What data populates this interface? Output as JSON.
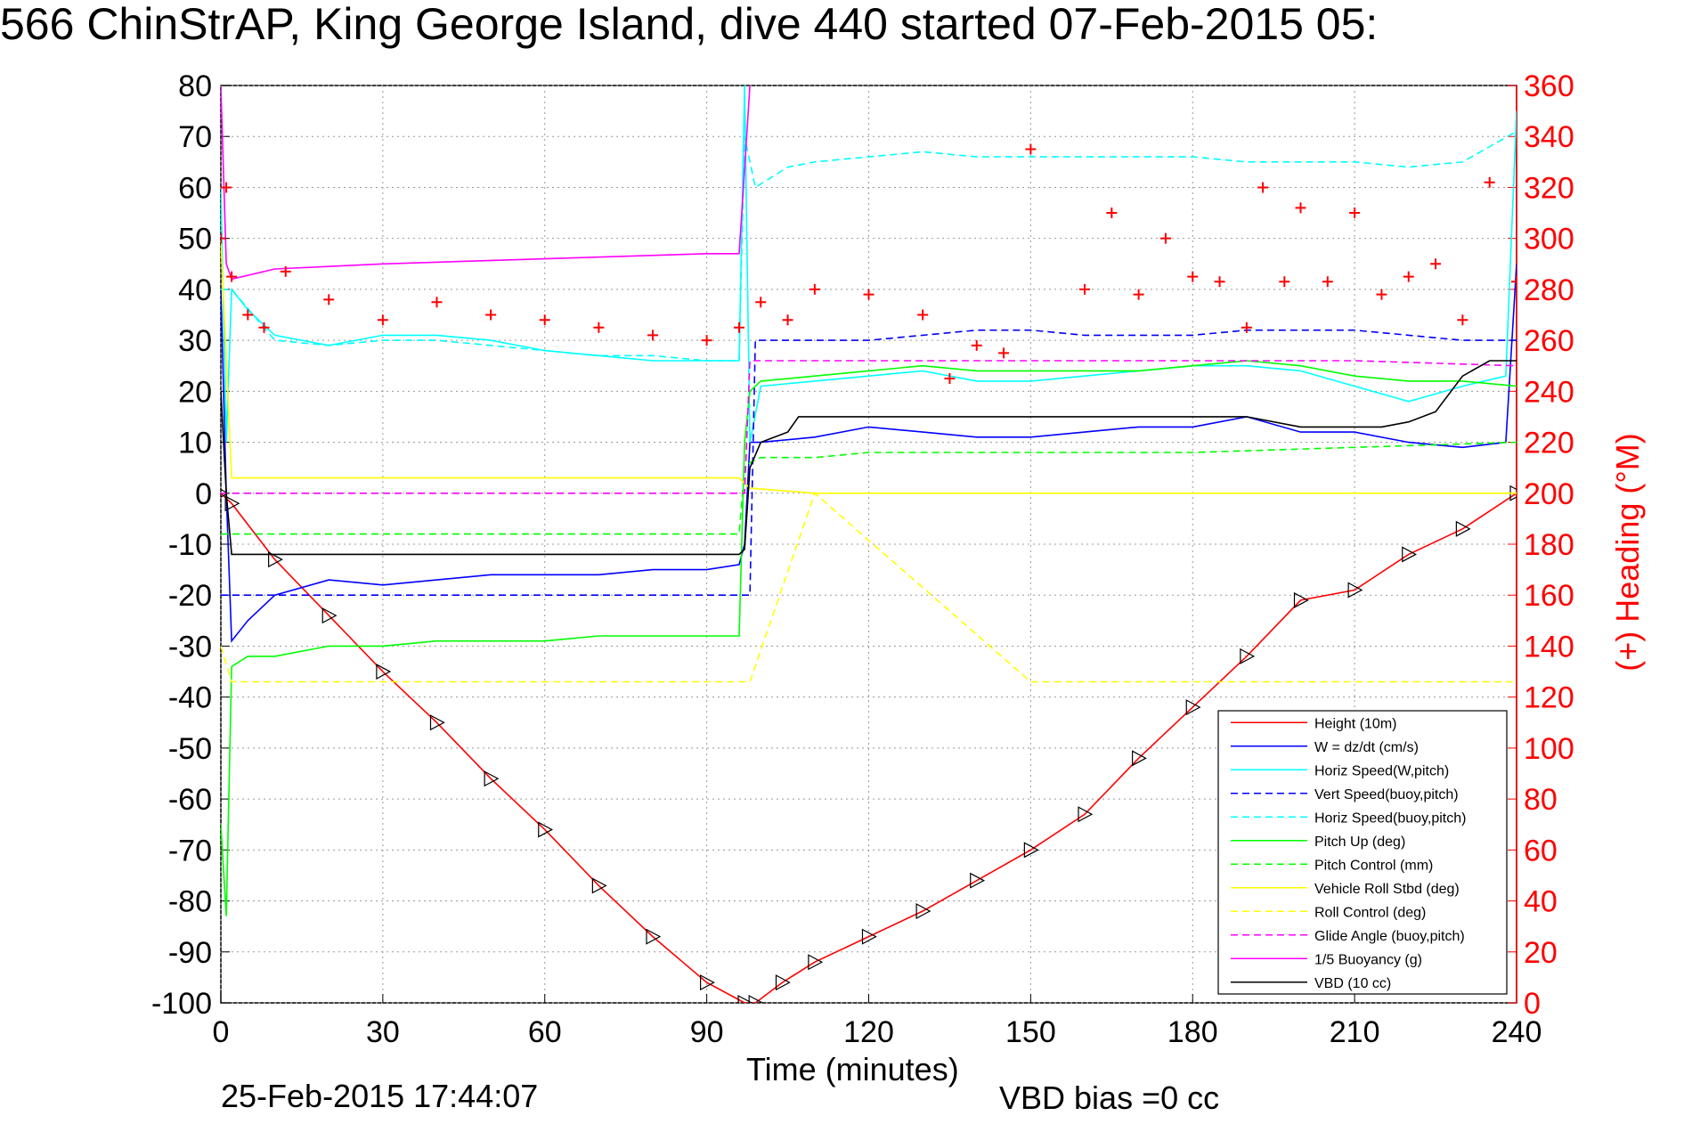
{
  "chart_data": {
    "type": "line",
    "title": "566 ChinStrAP, King George Island, dive 440 started 07-Feb-2015 05:",
    "xlabel": "Time (minutes)",
    "ylabel_right": "(+) Heading (°M)",
    "xlim": [
      0,
      240
    ],
    "ylim": [
      -100,
      80
    ],
    "ylim_right": [
      0,
      360
    ],
    "x_ticks": [
      0,
      30,
      60,
      90,
      120,
      150,
      180,
      210,
      240
    ],
    "y_ticks": [
      80,
      70,
      60,
      50,
      40,
      30,
      20,
      10,
      0,
      -10,
      -20,
      -30,
      -40,
      -50,
      -60,
      -70,
      -80,
      -90,
      -100
    ],
    "y_ticks_right": [
      360,
      340,
      320,
      300,
      280,
      260,
      240,
      220,
      200,
      180,
      160,
      140,
      120,
      100,
      80,
      60,
      40,
      20,
      0
    ],
    "grid": true,
    "legend_position": "bottom-right",
    "timestamp": "25-Feb-2015 17:44:07",
    "vbd_bias": "VBD bias =0 cc",
    "series": [
      {
        "name": "Height (10m)",
        "color": "#ff0000",
        "style": "solid",
        "marker": "triangle",
        "x": [
          0,
          2,
          10,
          20,
          30,
          40,
          50,
          60,
          70,
          80,
          90,
          97,
          99,
          104,
          110,
          120,
          130,
          140,
          150,
          160,
          170,
          180,
          190,
          200,
          210,
          220,
          230,
          240
        ],
        "y": [
          0,
          -2,
          -13,
          -24,
          -35,
          -45,
          -56,
          -66,
          -77,
          -87,
          -96,
          -100,
          -100,
          -96,
          -92,
          -87,
          -82,
          -76,
          -70,
          -63,
          -52,
          -42,
          -32,
          -21,
          -19,
          -12,
          -7,
          0
        ]
      },
      {
        "name": "W = dz/dt (cm/s)",
        "color": "#0000ff",
        "style": "solid",
        "x": [
          0,
          1,
          2,
          5,
          10,
          20,
          30,
          40,
          50,
          60,
          70,
          80,
          90,
          96,
          97,
          98,
          100,
          110,
          120,
          130,
          140,
          150,
          160,
          170,
          180,
          190,
          200,
          210,
          220,
          230,
          238,
          240
        ],
        "y": [
          40,
          0,
          -29,
          -25,
          -20,
          -17,
          -18,
          -17,
          -16,
          -16,
          -16,
          -15,
          -15,
          -14,
          -10,
          10,
          10,
          11,
          13,
          12,
          11,
          11,
          12,
          13,
          13,
          15,
          12,
          12,
          10,
          9,
          10,
          45
        ]
      },
      {
        "name": "Horiz Speed(W,pitch)",
        "color": "#00ffff",
        "style": "solid",
        "x": [
          0,
          1,
          2,
          5,
          10,
          20,
          30,
          40,
          50,
          60,
          70,
          80,
          90,
          96,
          97,
          98,
          100,
          110,
          120,
          130,
          140,
          150,
          160,
          170,
          180,
          190,
          200,
          210,
          220,
          230,
          238,
          240
        ],
        "y": [
          60,
          10,
          40,
          36,
          31,
          29,
          31,
          31,
          30,
          28,
          27,
          26,
          26,
          26,
          80,
          10,
          21,
          22,
          23,
          24,
          22,
          22,
          23,
          24,
          25,
          25,
          24,
          21,
          18,
          21,
          23,
          75
        ]
      },
      {
        "name": "Vert Speed(buoy,pitch)",
        "color": "#0000ff",
        "style": "dashed",
        "x": [
          0,
          2,
          98,
          99,
          110,
          120,
          130,
          140,
          150,
          160,
          170,
          180,
          190,
          200,
          210,
          220,
          230,
          240
        ],
        "y": [
          -20,
          -20,
          -20,
          30,
          30,
          30,
          31,
          32,
          32,
          31,
          31,
          31,
          32,
          32,
          32,
          31,
          30,
          30
        ]
      },
      {
        "name": "Horiz Speed(buoy,pitch)",
        "color": "#00ffff",
        "style": "dashed",
        "x": [
          0,
          2,
          10,
          20,
          30,
          40,
          50,
          60,
          70,
          80,
          90,
          96,
          97,
          99,
          105,
          110,
          120,
          130,
          140,
          150,
          160,
          170,
          180,
          190,
          200,
          210,
          220,
          230,
          240
        ],
        "y": [
          40,
          40,
          30,
          29,
          30,
          30,
          29,
          28,
          27,
          27,
          26,
          26,
          70,
          60,
          64,
          65,
          66,
          67,
          66,
          66,
          66,
          66,
          66,
          65,
          65,
          65,
          64,
          65,
          71
        ]
      },
      {
        "name": "Pitch Up (deg)",
        "color": "#00ff00",
        "style": "solid",
        "x": [
          0,
          1,
          2,
          5,
          10,
          20,
          30,
          40,
          50,
          60,
          70,
          80,
          90,
          96,
          97,
          98,
          100,
          110,
          120,
          130,
          140,
          150,
          160,
          170,
          180,
          190,
          200,
          210,
          220,
          230,
          240
        ],
        "y": [
          -65,
          -83,
          -34,
          -32,
          -32,
          -30,
          -30,
          -29,
          -29,
          -29,
          -28,
          -28,
          -28,
          -28,
          10,
          20,
          22,
          23,
          24,
          25,
          24,
          24,
          24,
          24,
          25,
          26,
          25,
          23,
          22,
          22,
          21
        ]
      },
      {
        "name": "Pitch Control (mm)",
        "color": "#00ff00",
        "style": "dashed",
        "x": [
          0,
          2,
          96,
          97,
          98,
          100,
          110,
          120,
          150,
          180,
          210,
          240
        ],
        "y": [
          -8,
          -8,
          -8,
          5,
          6,
          7,
          7,
          8,
          8,
          8,
          9,
          10
        ]
      },
      {
        "name": "Vehicle Roll Stbd (deg)",
        "color": "#ffff00",
        "style": "solid",
        "x": [
          0,
          2,
          10,
          30,
          60,
          90,
          96,
          98,
          110,
          150,
          180,
          210,
          240
        ],
        "y": [
          50,
          3,
          3,
          3,
          3,
          3,
          3,
          1,
          0,
          0,
          0,
          0,
          0
        ]
      },
      {
        "name": "Roll Control (deg)",
        "color": "#ffff00",
        "style": "dashed",
        "x": [
          0,
          2,
          10,
          30,
          60,
          90,
          96,
          98,
          110,
          150,
          180,
          210,
          240
        ],
        "y": [
          -30,
          -37,
          -37,
          -37,
          -37,
          -37,
          -37,
          -37,
          0,
          -37,
          -37,
          -37,
          -37
        ]
      },
      {
        "name": "Glide Angle (buoy,pitch)",
        "color": "#ff00ff",
        "style": "dashed",
        "x": [
          0,
          2,
          96,
          97,
          98,
          110,
          130,
          150,
          180,
          210,
          240
        ],
        "y": [
          0,
          0,
          0,
          0,
          26,
          26,
          26,
          26,
          26,
          26,
          25
        ]
      },
      {
        "name": "1/5 Buoyancy (g)",
        "color": "#ff00ff",
        "style": "solid",
        "x": [
          0,
          1,
          2,
          10,
          30,
          60,
          90,
          96,
          98
        ],
        "y": [
          80,
          45,
          42,
          44,
          45,
          46,
          47,
          47,
          80
        ]
      },
      {
        "name": "VBD (10 cc)",
        "color": "#000000",
        "style": "solid",
        "x": [
          0,
          1,
          2,
          96,
          97,
          98,
          100,
          105,
          107,
          150,
          180,
          190,
          200,
          215,
          220,
          225,
          230,
          235,
          240
        ],
        "y": [
          20,
          0,
          -12,
          -12,
          -11,
          5,
          10,
          12,
          15,
          15,
          15,
          15,
          13,
          13,
          14,
          16,
          23,
          26,
          26
        ]
      },
      {
        "name": "Heading (°M)",
        "axis": "right",
        "color": "#ff0000",
        "style": "plus",
        "x": [
          0,
          1,
          2,
          5,
          8,
          12,
          20,
          30,
          40,
          50,
          60,
          70,
          80,
          90,
          96,
          100,
          105,
          110,
          120,
          130,
          135,
          140,
          145,
          150,
          160,
          165,
          170,
          175,
          180,
          185,
          190,
          193,
          197,
          200,
          205,
          210,
          215,
          220,
          225,
          230,
          235,
          240
        ],
        "y": [
          300,
          320,
          285,
          270,
          265,
          287,
          276,
          268,
          275,
          270,
          268,
          265,
          262,
          260,
          265,
          275,
          268,
          280,
          278,
          270,
          245,
          258,
          255,
          335,
          280,
          310,
          278,
          300,
          285,
          283,
          265,
          320,
          283,
          312,
          283,
          310,
          278,
          285,
          290,
          268,
          322,
          283
        ]
      }
    ]
  }
}
